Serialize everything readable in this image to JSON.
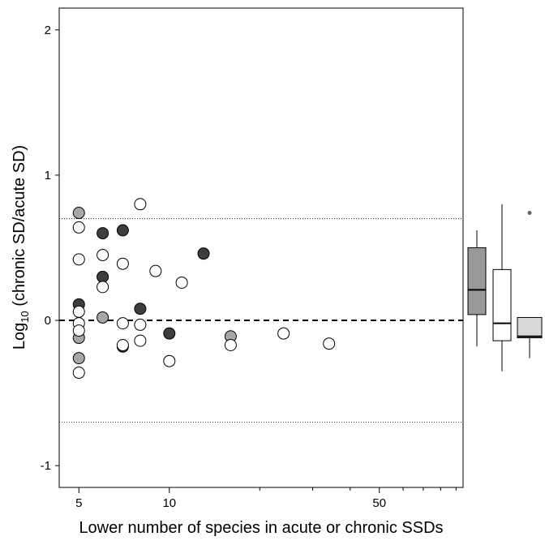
{
  "chart_data": {
    "type": "scatter",
    "xlabel": "Lower number of species in acute or chronic SSDs",
    "ylabel_main": "Log",
    "ylabel_sub": "10",
    "ylabel_rest": " (chronic SD/acute SD)",
    "x_scale": "log",
    "xlim": [
      4.3,
      95
    ],
    "ylim": [
      -1.15,
      2.15
    ],
    "x_ticks": [
      {
        "value": 5,
        "label": "5"
      },
      {
        "value": 10,
        "label": "10"
      },
      {
        "value": 50,
        "label": "50"
      }
    ],
    "x_minor_ticks": [
      20,
      30,
      40,
      60,
      70,
      80,
      90
    ],
    "y_ticks": [
      {
        "value": 2,
        "label": "2"
      },
      {
        "value": 1,
        "label": "1"
      },
      {
        "value": 0,
        "label": "0"
      },
      {
        "value": -1,
        "label": "-1"
      }
    ],
    "reference_lines": [
      {
        "y": 0,
        "style": "dashed"
      },
      {
        "y": 0.7,
        "style": "dotted"
      },
      {
        "y": -0.7,
        "style": "dotted"
      }
    ],
    "grid": false,
    "series": [
      {
        "color": "#a6a6a6",
        "points": [
          {
            "x": 5,
            "y": 0.74
          },
          {
            "x": 5,
            "y": -0.12
          },
          {
            "x": 5,
            "y": -0.26
          },
          {
            "x": 6,
            "y": 0.02
          },
          {
            "x": 16,
            "y": -0.11
          }
        ]
      },
      {
        "color": "#3d3d3d",
        "points": [
          {
            "x": 5,
            "y": 0.11
          },
          {
            "x": 6,
            "y": 0.6
          },
          {
            "x": 6,
            "y": 0.3
          },
          {
            "x": 7,
            "y": 0.62
          },
          {
            "x": 7,
            "y": -0.18
          },
          {
            "x": 8,
            "y": 0.08
          },
          {
            "x": 10,
            "y": -0.09
          },
          {
            "x": 13,
            "y": 0.46
          }
        ]
      },
      {
        "color": "#ffffff",
        "points": [
          {
            "x": 5,
            "y": 0.64
          },
          {
            "x": 5,
            "y": 0.42
          },
          {
            "x": 5,
            "y": 0.06
          },
          {
            "x": 5,
            "y": -0.02
          },
          {
            "x": 5,
            "y": -0.07
          },
          {
            "x": 5,
            "y": -0.36
          },
          {
            "x": 6,
            "y": 0.45
          },
          {
            "x": 6,
            "y": 0.23
          },
          {
            "x": 7,
            "y": 0.39
          },
          {
            "x": 7,
            "y": -0.02
          },
          {
            "x": 7,
            "y": -0.17
          },
          {
            "x": 8,
            "y": 0.8
          },
          {
            "x": 8,
            "y": -0.03
          },
          {
            "x": 8,
            "y": -0.14
          },
          {
            "x": 9,
            "y": 0.34
          },
          {
            "x": 10,
            "y": -0.28
          },
          {
            "x": 11,
            "y": 0.26
          },
          {
            "x": 16,
            "y": -0.17
          },
          {
            "x": 24,
            "y": -0.09
          },
          {
            "x": 34,
            "y": -0.16
          }
        ]
      }
    ],
    "boxplots": [
      {
        "fill": "#999999",
        "whisker_low": -0.18,
        "q1": 0.04,
        "median": 0.21,
        "q3": 0.5,
        "whisker_high": 0.62,
        "outliers": []
      },
      {
        "fill": "#ffffff",
        "whisker_low": -0.35,
        "q1": -0.14,
        "median": -0.02,
        "q3": 0.35,
        "whisker_high": 0.8,
        "outliers": []
      },
      {
        "fill": "#d9d9d9",
        "whisker_low": -0.26,
        "q1": -0.12,
        "median": -0.11,
        "q3": 0.02,
        "whisker_high": 0.02,
        "outliers": [
          0.74
        ]
      }
    ]
  }
}
